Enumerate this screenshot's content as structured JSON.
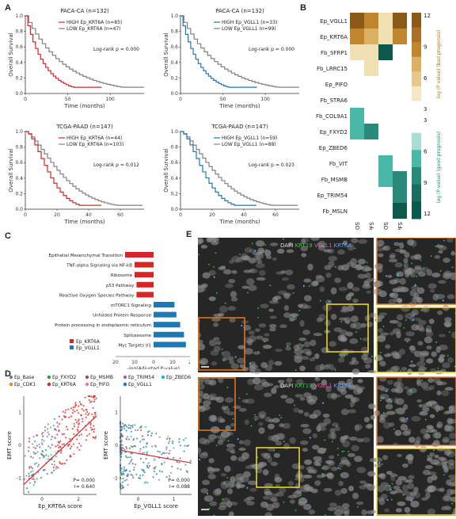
{
  "panels": {
    "A": "A",
    "B": "B",
    "C": "C",
    "D": "D",
    "E": "E"
  },
  "km": [
    {
      "title": "PACA-CA (n=132)",
      "high": "HIGH Ep_KRT6A (n=85)",
      "low": "LOW Ep_KRT6A (n=47)",
      "logrank": "Log-rank p = 0.000",
      "ylabel": "Overall Survival",
      "xlabel": "Time (months)",
      "xticks": [
        "0",
        "50",
        "100"
      ],
      "yticks": [
        "0.0",
        "0.2",
        "0.4",
        "0.6",
        "0.8",
        "1.0"
      ],
      "color": "#d62728",
      "type": "paca"
    },
    {
      "title": "PACA-CA (n=132)",
      "high": "HIGH Ep_VGLL1 (n=33)",
      "low": "LOW Ep_VGLL1 (n=99)",
      "logrank": "Log-rank p = 0.000",
      "ylabel": "Overall Survival",
      "xlabel": "Time (months)",
      "xticks": [
        "0",
        "50",
        "100"
      ],
      "yticks": [
        "0.0",
        "0.2",
        "0.4",
        "0.6",
        "0.8",
        "1.0"
      ],
      "color": "#1f77b4",
      "type": "paca"
    },
    {
      "title": "TCGA-PAAD (n=147)",
      "high": "HIGH Ep_KRT6A (n=44)",
      "low": "LOW Ep_KRT6A (n=103)",
      "logrank": "Log-rank p = 0.012",
      "ylabel": "Overall Survival",
      "xlabel": "Time (months)",
      "xticks": [
        "0",
        "20",
        "40",
        "60"
      ],
      "yticks": [
        "0.0",
        "0.2",
        "0.4",
        "0.6",
        "0.8",
        "1.0"
      ],
      "color": "#d62728",
      "type": "tcga"
    },
    {
      "title": "TCGA-PAAD (n=147)",
      "high": "HIGH Ep_VGLL1 (n=59)",
      "low": "LOW Ep_VGLL1 (n=88)",
      "logrank": "Log-rank p = 0.023",
      "ylabel": "Overall Survival",
      "xlabel": "Time (months)",
      "xticks": [
        "0",
        "20",
        "40",
        "60"
      ],
      "yticks": [
        "0.0",
        "0.2",
        "0.4",
        "0.6",
        "0.8",
        "1.0"
      ],
      "color": "#1f77b4",
      "type": "tcga"
    }
  ],
  "heatmap": {
    "rows": [
      "Ep_VGLL1",
      "Ep_KRT6A",
      "Fb_SFRP1",
      "Fb_LRRC15",
      "Ep_PIFO",
      "Fb_STRA6",
      "Fb_COL9A1",
      "Ep_FXYD2",
      "Ep_ZBED6",
      "Fb_VIT",
      "Fb_MSMB",
      "Ep_TRIM54",
      "Fb_MSLN"
    ],
    "cols": [
      "PACA_OS",
      "PACA_PFS",
      "TCGA_OS",
      "TCGA_PFS"
    ],
    "colorbar_top_label": "log (P value) (bad prognosis)",
    "colorbar_bottom_label": "log (P value) (good prognosis)",
    "colorbar_ticks_top": [
      "12",
      "9",
      "6",
      "3"
    ],
    "colorbar_ticks_bottom": [
      "3",
      "6",
      "9",
      "12"
    ],
    "cells": [
      [
        "#8a5a16",
        "#c0862e",
        "#f1e0b3",
        "#8a5a16"
      ],
      [
        "#c0862e",
        "#dbb060",
        "#f1e0b3",
        "#c0862e"
      ],
      [
        "#f1e0b3",
        "#f1e0b3",
        "#0c5a4c",
        ""
      ],
      [
        "",
        "#f1e0b3",
        "",
        ""
      ],
      [
        "",
        "",
        "",
        ""
      ],
      [
        "",
        "",
        "",
        ""
      ],
      [
        "#49b8a6",
        "",
        "",
        ""
      ],
      [
        "#49b8a6",
        "#2a8a7a",
        "",
        ""
      ],
      [
        "",
        "",
        "",
        ""
      ],
      [
        "",
        "",
        "#49b8a6",
        ""
      ],
      [
        "",
        "",
        "#49b8a6",
        "#2a8a7a"
      ],
      [
        "",
        "",
        "",
        "#2a8a7a"
      ],
      [
        "",
        "",
        "",
        "#0c5a4c"
      ]
    ]
  },
  "chart_data": {
    "type": "bar",
    "categories": [
      "Epithelial Mesenchymal Transition",
      "TNF-alpha Signaling via NF-kB",
      "Ribosome",
      "p53 Pathway",
      "Reactive Oxygen Species Pathway",
      "mTORC1 Signaling",
      "Unfolded Protein Response",
      "Protein processing in endoplasmic reticulum",
      "Spliceosome",
      "Myc Targets V1"
    ],
    "series": [
      {
        "name": "Ep_KRT6A",
        "color": "#d62728",
        "values": [
          15,
          10,
          10,
          9,
          9,
          0,
          0,
          0,
          0,
          0
        ]
      },
      {
        "name": "Ep_VGLL1",
        "color": "#1f77b4",
        "values": [
          0,
          0,
          0,
          0,
          0,
          11,
          12,
          14,
          16,
          17
        ]
      }
    ],
    "xlabel": "-log(Adjusted P-value)",
    "xticks": [
      "20",
      "10",
      "0",
      "10",
      "20"
    ]
  },
  "scatter": {
    "legend": [
      "Ep_Base",
      "Ep_FXYD2",
      "Ep_MSMB",
      "Ep_TRIM54",
      "Ep_ZBED6",
      "Ep_CDK1",
      "Ep_KRT6A",
      "Ep_PIFO",
      "Ep_VGLL1"
    ],
    "legend_colors": [
      "#7f7f7f",
      "#2ca02c",
      "#8c564b",
      "#9467bd",
      "#17becf",
      "#ff7f0e",
      "#d62728",
      "#e377c2",
      "#1f77b4"
    ],
    "left": {
      "xlabel": "Ep_KRT6A score",
      "ylabel": "EMT score",
      "p": "P= 0.000",
      "r": "r= 0.640",
      "xticks": [
        "0",
        "2"
      ],
      "yticks": [
        "-1",
        "0",
        "1"
      ]
    },
    "right": {
      "xlabel": "Ep_VGLL1 score",
      "ylabel": "EMT score",
      "p": "P= 0.000",
      "r": "r= 0.088",
      "xticks": [
        "0",
        "1"
      ],
      "yticks": [
        "-1",
        "0",
        "1"
      ]
    }
  },
  "micro": {
    "top_label": {
      "dapi": "DAPI",
      "krt": "KRT19",
      "vgll": "VGLL1",
      "krt6": "KRT6A"
    },
    "bottom_label": {
      "dapi": "DAPI",
      "krt": "KRT19",
      "vgll": "VGLL1",
      "krt6": "KRT6A"
    }
  }
}
